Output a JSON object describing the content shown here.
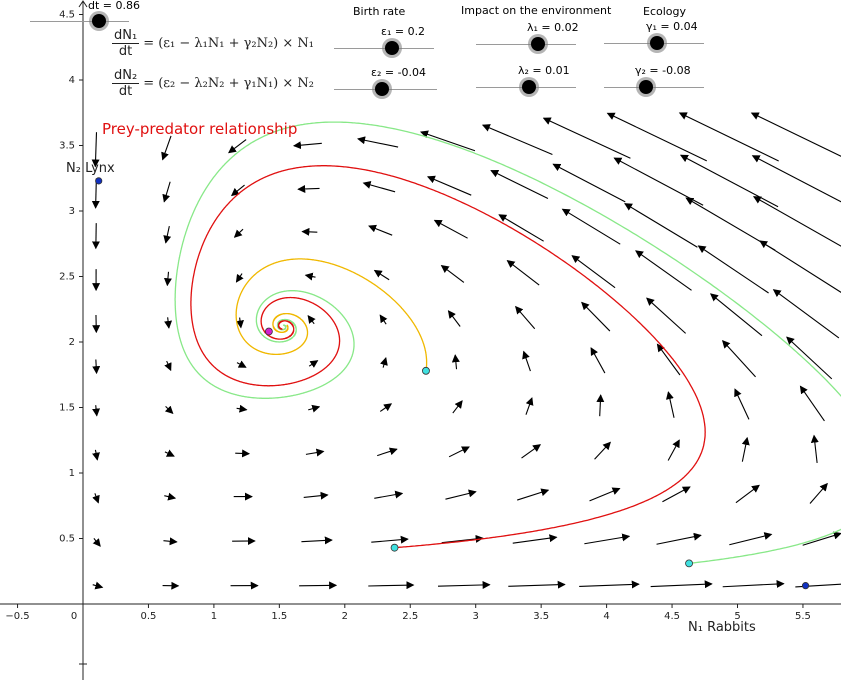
{
  "equations": {
    "eq1": {
      "numerator": "dN₁",
      "denominator": "dt",
      "rhs": "= (ε₁ − λ₁N₁ + γ₂N₂) × N₁"
    },
    "eq2": {
      "numerator": "dN₂",
      "denominator": "dt",
      "rhs": "= (ε₂ − λ₂N₂ + γ₁N₁) × N₂"
    }
  },
  "headings": {
    "birth_rate": "Birth rate",
    "impact": "Impact on the environment",
    "ecology": "Ecology"
  },
  "sliders": [
    {
      "id": "dt",
      "label": "dt = 0.86",
      "value": 0.86
    },
    {
      "id": "eps1",
      "label": "ε₁ = 0.2",
      "value": 0.2
    },
    {
      "id": "lambda1",
      "label": "λ₁ = 0.02",
      "value": 0.02
    },
    {
      "id": "gamma1",
      "label": "γ₁ = 0.04",
      "value": 0.04
    },
    {
      "id": "eps2",
      "label": "ε₂ = -0.04",
      "value": -0.04
    },
    {
      "id": "lambda2",
      "label": "λ₂ = 0.01",
      "value": 0.01
    },
    {
      "id": "gamma2",
      "label": "γ₂ = -0.08",
      "value": -0.08
    }
  ],
  "plot": {
    "title": "Prey-predator relationship",
    "xlabel": "N₁ Rabbits",
    "ylabel": "N₂ Lynx",
    "xticks": [
      "−0.5",
      "0",
      "0.5",
      "1",
      "1.5",
      "2",
      "2.5",
      "3",
      "3.5",
      "4",
      "4.5",
      "5",
      "5.5"
    ],
    "yticks": [
      "0.5",
      "1",
      "1.5",
      "2",
      "2.5",
      "3",
      "3.5",
      "4",
      "4.5"
    ],
    "colors": {
      "green": "#88e888",
      "red": "#e01010",
      "orange": "#f0b800",
      "arrow": "#000000",
      "start_point": "#40e0e0",
      "equilibrium": "#d020d0",
      "axis_point": "#1030c0"
    },
    "equilibrium": {
      "x": 1.42,
      "y": 2.08
    },
    "start_points": [
      {
        "x": 2.38,
        "y": 0.43
      },
      {
        "x": 2.62,
        "y": 1.78
      },
      {
        "x": 4.63,
        "y": 0.31
      }
    ],
    "axis_points": [
      {
        "x": 0.12,
        "y": 3.23
      },
      {
        "x": 5.52,
        "y": 0.14
      }
    ]
  }
}
